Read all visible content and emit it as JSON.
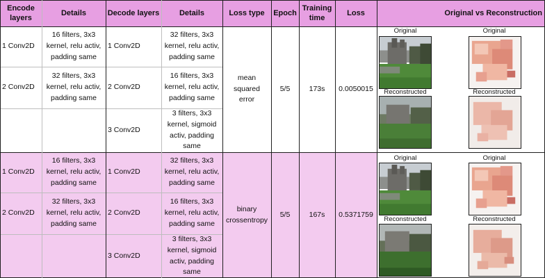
{
  "header": {
    "encode_layers": "Encode layers",
    "details": "Details",
    "decode_layers": "Decode layers",
    "decode_details": "Details",
    "loss_type": "Loss type",
    "epoch": "Epoch",
    "training_time": "Training time",
    "loss": "Loss",
    "orig_vs_recon": "Original vs Reconstruction"
  },
  "experiments": [
    {
      "encode": [
        {
          "n": "1",
          "layer": "Conv2D",
          "details": "16 filters, 3x3 kernel, relu activ, padding same"
        },
        {
          "n": "2",
          "layer": "Conv2D",
          "details": "32 filters, 3x3 kernel, relu activ, padding same"
        }
      ],
      "decode": [
        {
          "n": "1",
          "layer": "Conv2D",
          "details": "32 filters, 3x3 kernel, relu activ, padding same"
        },
        {
          "n": "2",
          "layer": "Conv2D",
          "details": "16 filters, 3x3 kernel, relu activ, padding same"
        },
        {
          "n": "3",
          "layer": "Conv2D",
          "details": "3 filters, 3x3 kernel, sigmoid activ, padding same"
        }
      ],
      "loss_type": "mean squared error",
      "epoch": "5/5",
      "training_time": "173s",
      "loss": "0.0050015",
      "captions": {
        "original": "Original",
        "reconstructed": "Reconstructed"
      }
    },
    {
      "encode": [
        {
          "n": "1",
          "layer": "Conv2D",
          "details": "16 filters, 3x3 kernel, relu activ, padding same"
        },
        {
          "n": "2",
          "layer": "Conv2D",
          "details": "32 filters, 3x3 kernel, relu activ, padding same"
        }
      ],
      "decode": [
        {
          "n": "1",
          "layer": "Conv2D",
          "details": "32 filters, 3x3 kernel, relu activ, padding same"
        },
        {
          "n": "2",
          "layer": "Conv2D",
          "details": "16 filters, 3x3 kernel, relu activ, padding same"
        },
        {
          "n": "3",
          "layer": "Conv2D",
          "details": "3 filters, 3x3 kernel, sigmoid activ, padding same"
        }
      ],
      "loss_type": "binary crossentropy",
      "epoch": "5/5",
      "training_time": "167s",
      "loss": "0.5371759",
      "captions": {
        "original": "Original",
        "reconstructed": "Reconstructed"
      }
    }
  ],
  "colors": {
    "header": "#e79fe2",
    "row_alt": "#f3cbef",
    "grid": "#1f1f1f"
  }
}
